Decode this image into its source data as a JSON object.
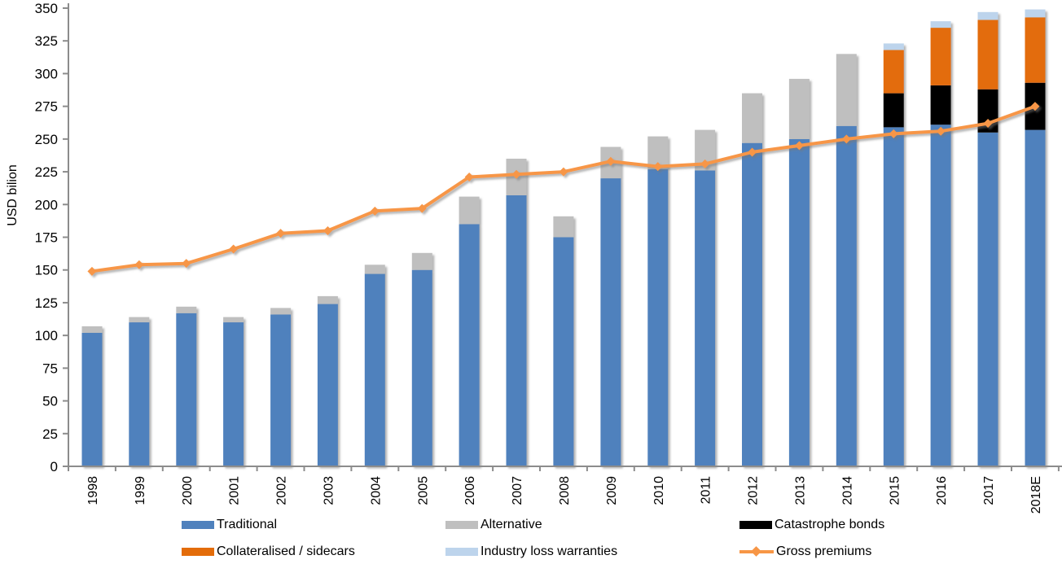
{
  "chart_data": {
    "type": "bar",
    "subtype": "stacked-bars-with-line-overlay",
    "title": "",
    "xlabel": "",
    "ylabel": "USD bilion",
    "ylim": [
      0,
      350
    ],
    "ytick_step": 25,
    "yticks": [
      "0",
      "25",
      "50",
      "75",
      "100",
      "125",
      "150",
      "175",
      "200",
      "225",
      "250",
      "275",
      "300",
      "325",
      "350"
    ],
    "grid": false,
    "legend_position": "bottom",
    "axis_color": "#8c8c8c",
    "text_color": "#000000",
    "categories": [
      "1998",
      "1999",
      "2000",
      "2001",
      "2002",
      "2003",
      "2004",
      "2005",
      "2006",
      "2007",
      "2008",
      "2009",
      "2010",
      "2011",
      "2012",
      "2013",
      "2014",
      "2015",
      "2016",
      "2017",
      "2018E"
    ],
    "series": [
      {
        "name": "Traditional",
        "type": "bar",
        "color": "#4f81bd",
        "values": [
          102,
          110,
          117,
          110,
          116,
          124,
          147,
          150,
          185,
          207,
          175,
          220,
          227,
          226,
          247,
          250,
          260,
          259,
          261,
          255,
          257
        ]
      },
      {
        "name": "Alternative",
        "type": "bar",
        "color": "#bfbfbf",
        "values": [
          5,
          4,
          5,
          4,
          5,
          6,
          7,
          13,
          21,
          28,
          16,
          24,
          25,
          31,
          38,
          46,
          55,
          0,
          0,
          0,
          0
        ]
      },
      {
        "name": "Catastrophe bonds",
        "type": "bar",
        "color": "#000000",
        "values": [
          0,
          0,
          0,
          0,
          0,
          0,
          0,
          0,
          0,
          0,
          0,
          0,
          0,
          0,
          0,
          0,
          0,
          26,
          30,
          33,
          36
        ]
      },
      {
        "name": "Collateralised / sidecars",
        "type": "bar",
        "color": "#e36c0a",
        "values": [
          0,
          0,
          0,
          0,
          0,
          0,
          0,
          0,
          0,
          0,
          0,
          0,
          0,
          0,
          0,
          0,
          0,
          33,
          44,
          53,
          50
        ]
      },
      {
        "name": "Industry loss warranties",
        "type": "bar",
        "color": "#bdd4ec",
        "values": [
          0,
          0,
          0,
          0,
          0,
          0,
          0,
          0,
          0,
          0,
          0,
          0,
          0,
          0,
          0,
          0,
          0,
          5,
          5,
          6,
          6
        ]
      },
      {
        "name": "Gross premiums",
        "type": "line",
        "color": "#f79646",
        "values": [
          149,
          154,
          155,
          166,
          178,
          180,
          195,
          197,
          221,
          223,
          225,
          233,
          229,
          231,
          240,
          245,
          250,
          254,
          256,
          262,
          275
        ]
      }
    ]
  }
}
